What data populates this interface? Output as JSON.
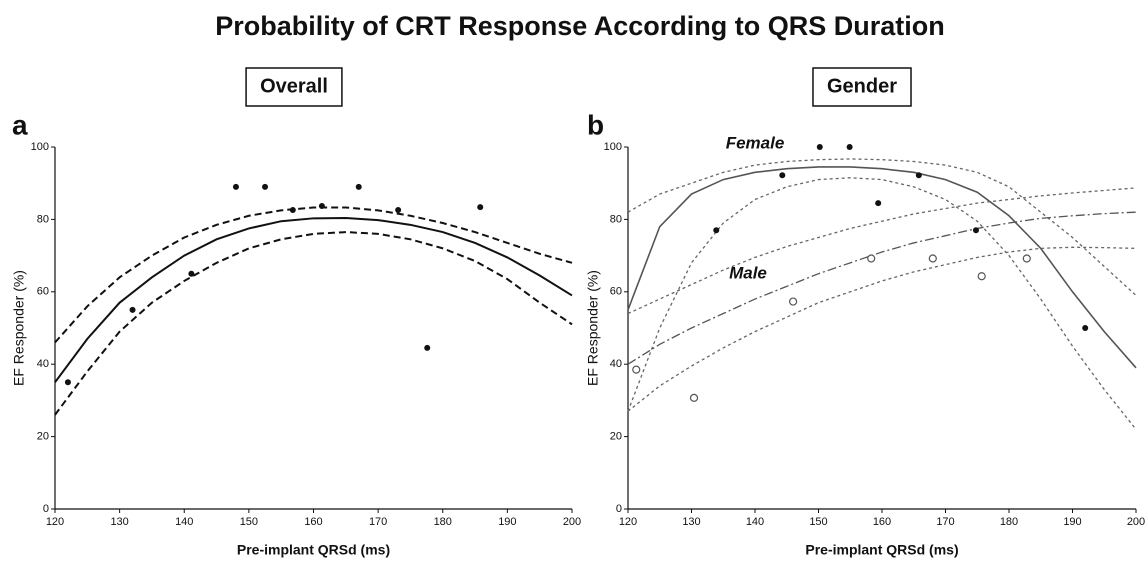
{
  "title": "Probability of CRT Response According to QRS Duration",
  "chart_data": [
    {
      "type": "scatter",
      "title": "Overall",
      "panel": "a",
      "xlabel": "Pre-implant QRSd (ms)",
      "ylabel": "EF Responder (%)",
      "xlim": [
        120,
        200
      ],
      "ylim": [
        0,
        100
      ],
      "xticks": [
        120,
        130,
        140,
        150,
        160,
        170,
        180,
        190,
        200
      ],
      "yticks": [
        0,
        20,
        40,
        60,
        80,
        100
      ],
      "points": [
        {
          "marker": "filled",
          "color": "#111111",
          "x": [
            122,
            132,
            141.1,
            148,
            152.5,
            156.8,
            161.3,
            167,
            173.1,
            177.6,
            185.8
          ],
          "y": [
            35,
            55,
            65,
            89,
            89,
            82.6,
            83.7,
            89,
            82.6,
            44.5,
            83.4
          ]
        }
      ],
      "curves": {
        "x": [
          120,
          125,
          130,
          135,
          140,
          145,
          150,
          155,
          160,
          165,
          170,
          175,
          180,
          185,
          190,
          195,
          200
        ],
        "lines": [
          {
            "dash": "solid",
            "color": "#111111",
            "width": 2,
            "values": [
              35,
              47,
              57,
              64,
              70,
              74.5,
              77.5,
              79.5,
              80.3,
              80.4,
              79.8,
              78.5,
              76.5,
              73.5,
              69.5,
              64.5,
              59
            ]
          },
          {
            "dash": "dashed",
            "color": "#111111",
            "width": 2,
            "values": [
              46,
              56,
              64,
              70,
              75,
              78.5,
              81,
              82.5,
              83.3,
              83.3,
              82.5,
              81,
              79,
              76.5,
              73.5,
              70.5,
              68
            ]
          },
          {
            "dash": "dashed",
            "color": "#111111",
            "width": 2,
            "values": [
              26,
              38,
              49,
              57,
              63,
              68,
              72,
              74.5,
              76,
              76.5,
              76,
              74.5,
              72,
              68.5,
              63.5,
              57,
              51
            ]
          }
        ]
      },
      "annotations": []
    },
    {
      "type": "scatter",
      "title": "Gender",
      "panel": "b",
      "xlabel": "Pre-implant QRSd (ms)",
      "ylabel": "EF Responder (%)",
      "xlim": [
        120,
        200
      ],
      "ylim": [
        0,
        100
      ],
      "xticks": [
        120,
        130,
        140,
        150,
        160,
        170,
        180,
        190,
        200
      ],
      "yticks": [
        0,
        20,
        40,
        60,
        80,
        100
      ],
      "points": [
        {
          "marker": "filled",
          "color": "#111111",
          "x": [
            133.9,
            144.3,
            150.2,
            154.9,
            159.4,
            165.8,
            174.8,
            192
          ],
          "y": [
            77,
            92.2,
            100,
            100,
            84.5,
            92.2,
            77,
            50
          ]
        },
        {
          "marker": "open",
          "color": "#555555",
          "x": [
            121.3,
            130.4,
            146,
            158.3,
            168,
            175.7,
            182.8
          ],
          "y": [
            38.5,
            30.7,
            57.3,
            69.2,
            69.2,
            64.3,
            69.2
          ]
        }
      ],
      "curves": {
        "x": [
          120,
          125,
          130,
          135,
          140,
          145,
          150,
          155,
          160,
          165,
          170,
          175,
          180,
          185,
          190,
          195,
          200
        ],
        "lines": [
          {
            "dash": "solid",
            "color": "#555555",
            "width": 1.6,
            "values": [
              55,
              78,
              87,
              91,
              93,
              94,
              94.5,
              94.5,
              94,
              93,
              91,
              87.5,
              81,
              72,
              60,
              49,
              39
            ]
          },
          {
            "dash": "dotted",
            "color": "#666666",
            "width": 1.3,
            "values": [
              82,
              87,
              90,
              93,
              95,
              96,
              96.5,
              96.7,
              96.5,
              96,
              95,
              93,
              89,
              82,
              75,
              67,
              59
            ]
          },
          {
            "dash": "dotted",
            "color": "#666666",
            "width": 1.3,
            "values": [
              27,
              50,
              68,
              79,
              85.5,
              89,
              91,
              91.5,
              91,
              89,
              85.5,
              79.5,
              70,
              58,
              45,
              33,
              22
            ]
          },
          {
            "dash": "dashdot",
            "color": "#555555",
            "width": 1.3,
            "values": [
              40,
              45.5,
              50,
              54,
              58,
              61.5,
              65,
              68,
              71,
              73.5,
              75.5,
              77.5,
              79,
              80.3,
              81,
              81.6,
              82
            ]
          },
          {
            "dash": "dotted",
            "color": "#666666",
            "width": 1.3,
            "values": [
              54,
              58,
              62,
              66,
              69.5,
              72.5,
              75,
              77.5,
              79.5,
              81.5,
              83,
              84.5,
              85.5,
              86.5,
              87.3,
              88,
              88.7
            ]
          },
          {
            "dash": "dotted",
            "color": "#666666",
            "width": 1.3,
            "values": [
              27,
              34,
              39.5,
              44.5,
              49,
              53,
              57,
              60,
              63,
              65.5,
              67.5,
              69.5,
              71,
              72,
              72.3,
              72.2,
              72
            ]
          }
        ]
      },
      "annotations": [
        "Female",
        "Male"
      ]
    }
  ]
}
